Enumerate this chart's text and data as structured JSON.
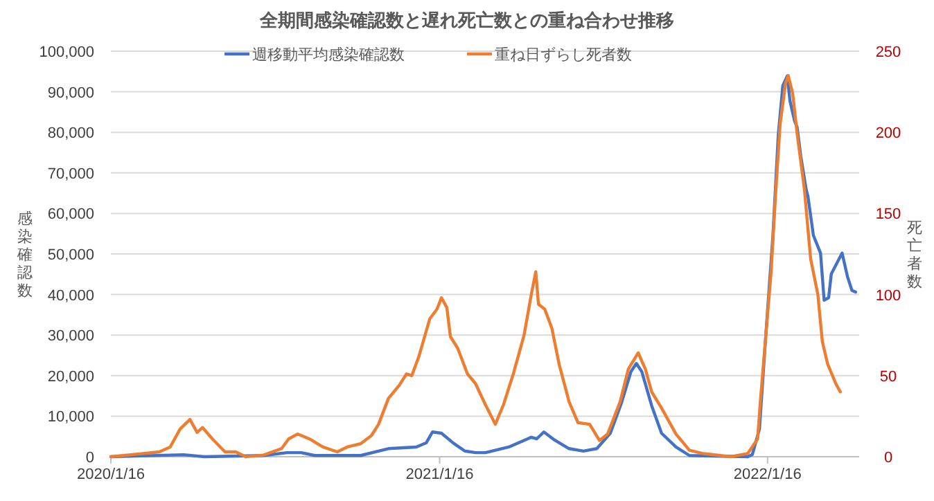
{
  "chart_data": {
    "type": "line",
    "title": "全期間感染確認数と遅れ死亡数との重ね合わせ推移",
    "ylabel": "感染確認数",
    "y2label": "死亡者数",
    "xlim": [
      "2020-01-16",
      "2022-04-28"
    ],
    "xticks": [
      {
        "value": "2020-01-16",
        "label": "2020/1/16"
      },
      {
        "value": "2021-01-16",
        "label": "2021/1/16"
      },
      {
        "value": "2022-01-16",
        "label": "2022/1/16"
      }
    ],
    "ylim": [
      0,
      100000
    ],
    "yticks": [
      {
        "value": 0,
        "label": "0"
      },
      {
        "value": 10000,
        "label": "10,000"
      },
      {
        "value": 20000,
        "label": "20,000"
      },
      {
        "value": 30000,
        "label": "30,000"
      },
      {
        "value": 40000,
        "label": "40,000"
      },
      {
        "value": 50000,
        "label": "50,000"
      },
      {
        "value": 60000,
        "label": "60,000"
      },
      {
        "value": 70000,
        "label": "70,000"
      },
      {
        "value": 80000,
        "label": "80,000"
      },
      {
        "value": 90000,
        "label": "90,000"
      },
      {
        "value": 100000,
        "label": "100,000"
      }
    ],
    "y2lim": [
      0,
      250
    ],
    "y2ticks": [
      0,
      50,
      100,
      150,
      200,
      250
    ],
    "grid": "y",
    "legend": "top",
    "marker": "none",
    "line_style": "solid",
    "series": [
      {
        "name": "週移動平均感染確認数",
        "color": "#4472c4",
        "x": [
          "2020-01-16",
          "2020-04-06",
          "2020-04-29",
          "2020-07-04",
          "2020-07-30",
          "2020-08-15",
          "2020-08-30",
          "2020-10-20",
          "2020-11-09",
          "2020-11-20",
          "2020-12-21",
          "2021-01-01",
          "2021-01-08",
          "2021-01-18",
          "2021-01-31",
          "2021-02-13",
          "2021-02-25",
          "2021-03-08",
          "2021-04-03",
          "2021-04-28",
          "2021-05-04",
          "2021-05-12",
          "2021-05-24",
          "2021-06-09",
          "2021-06-25",
          "2021-07-10",
          "2021-07-25",
          "2021-08-06",
          "2021-08-17",
          "2021-08-23",
          "2021-08-29",
          "2021-09-09",
          "2021-09-20",
          "2021-10-06",
          "2021-10-21",
          "2021-12-25",
          "2021-12-30",
          "2022-01-07",
          "2022-01-14",
          "2022-01-22",
          "2022-01-28",
          "2022-02-02",
          "2022-02-07",
          "2022-02-10",
          "2022-02-15",
          "2022-02-18",
          "2022-02-22",
          "2022-02-28",
          "2022-03-02",
          "2022-03-08",
          "2022-03-16",
          "2022-03-20",
          "2022-03-25",
          "2022-03-28",
          "2022-04-09",
          "2022-04-15",
          "2022-04-20",
          "2022-04-24"
        ],
        "values": [
          0,
          500,
          0,
          300,
          1000,
          1000,
          300,
          300,
          1400,
          2000,
          2400,
          3400,
          6100,
          5800,
          3400,
          1400,
          1000,
          1000,
          2400,
          4800,
          4400,
          6100,
          4100,
          2000,
          1400,
          2000,
          5800,
          13000,
          21000,
          23000,
          21000,
          12600,
          5800,
          2400,
          300,
          0,
          500,
          6800,
          29700,
          54600,
          79500,
          91500,
          93900,
          87700,
          82900,
          81200,
          74100,
          65900,
          64200,
          54600,
          50200,
          38600,
          39200,
          45100,
          50200,
          44400,
          41000,
          40600
        ]
      },
      {
        "name": "重ね日ずらし死者数",
        "color": "#ed7d31",
        "axis": "y2",
        "x": [
          "2020-01-16",
          "2020-02-21",
          "2020-03-10",
          "2020-03-22",
          "2020-04-02",
          "2020-04-13",
          "2020-04-21",
          "2020-04-27",
          "2020-05-08",
          "2020-05-22",
          "2020-06-03",
          "2020-06-14",
          "2020-07-04",
          "2020-07-24",
          "2020-08-01",
          "2020-08-11",
          "2020-08-24",
          "2020-09-08",
          "2020-09-24",
          "2020-10-05",
          "2020-10-20",
          "2020-11-01",
          "2020-11-09",
          "2020-11-20",
          "2020-12-02",
          "2020-12-10",
          "2020-12-16",
          "2020-12-24",
          "2021-01-05",
          "2021-01-13",
          "2021-01-18",
          "2021-01-24",
          "2021-01-28",
          "2021-02-05",
          "2021-02-16",
          "2021-02-25",
          "2021-03-08",
          "2021-03-19",
          "2021-03-28",
          "2021-04-08",
          "2021-04-20",
          "2021-04-28",
          "2021-05-03",
          "2021-05-06",
          "2021-05-13",
          "2021-05-21",
          "2021-05-29",
          "2021-06-09",
          "2021-06-19",
          "2021-07-02",
          "2021-07-13",
          "2021-07-22",
          "2021-08-05",
          "2021-08-14",
          "2021-08-25",
          "2021-09-02",
          "2021-09-09",
          "2021-09-20",
          "2021-10-06",
          "2021-10-21",
          "2021-11-05",
          "2021-12-06",
          "2021-12-25",
          "2022-01-05",
          "2022-01-08",
          "2022-01-14",
          "2022-01-20",
          "2022-01-25",
          "2022-01-30",
          "2022-02-05",
          "2022-02-08",
          "2022-02-13",
          "2022-02-18",
          "2022-02-26",
          "2022-03-05",
          "2022-03-13",
          "2022-03-18",
          "2022-03-24",
          "2022-04-02",
          "2022-04-07"
        ],
        "values": [
          0,
          2,
          3,
          6,
          17,
          23,
          15,
          18,
          11,
          3,
          3,
          0,
          1,
          5,
          11,
          14,
          11,
          6,
          3,
          6,
          8,
          13,
          20,
          36,
          44,
          51,
          50,
          62,
          85,
          91,
          98,
          92,
          74,
          67,
          51,
          45,
          32,
          20,
          32,
          51,
          75,
          100,
          114,
          94,
          91,
          79,
          57,
          34,
          21,
          20,
          10,
          14,
          34,
          54,
          64,
          54,
          40,
          30,
          14,
          4,
          2,
          0,
          2,
          11,
          34,
          74,
          114,
          162,
          205,
          230,
          235,
          224,
          199,
          165,
          122,
          100,
          71,
          57,
          45,
          40
        ]
      }
    ]
  }
}
